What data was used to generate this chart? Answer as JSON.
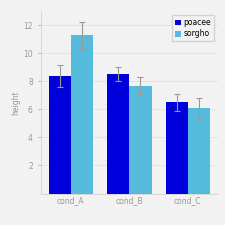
{
  "conditions": [
    "cond_A",
    "cond_B",
    "cond_C"
  ],
  "poacee_values": [
    8.4,
    8.5,
    6.5
  ],
  "sorgho_values": [
    11.3,
    7.7,
    6.1
  ],
  "poacee_errors": [
    0.8,
    0.5,
    0.6
  ],
  "sorgho_errors": [
    0.9,
    0.6,
    0.7
  ],
  "poacee_color": "#0000DD",
  "sorgho_color": "#55BBDD",
  "ylabel": "height",
  "ylim": [
    0,
    13
  ],
  "yticks": [
    2,
    4,
    6,
    8,
    10,
    12
  ],
  "legend_labels": [
    "poacee",
    "sorgho"
  ],
  "bar_width": 0.38,
  "background_color": "#f2f2f2",
  "axis_fontsize": 5.5,
  "tick_fontsize": 5.5
}
